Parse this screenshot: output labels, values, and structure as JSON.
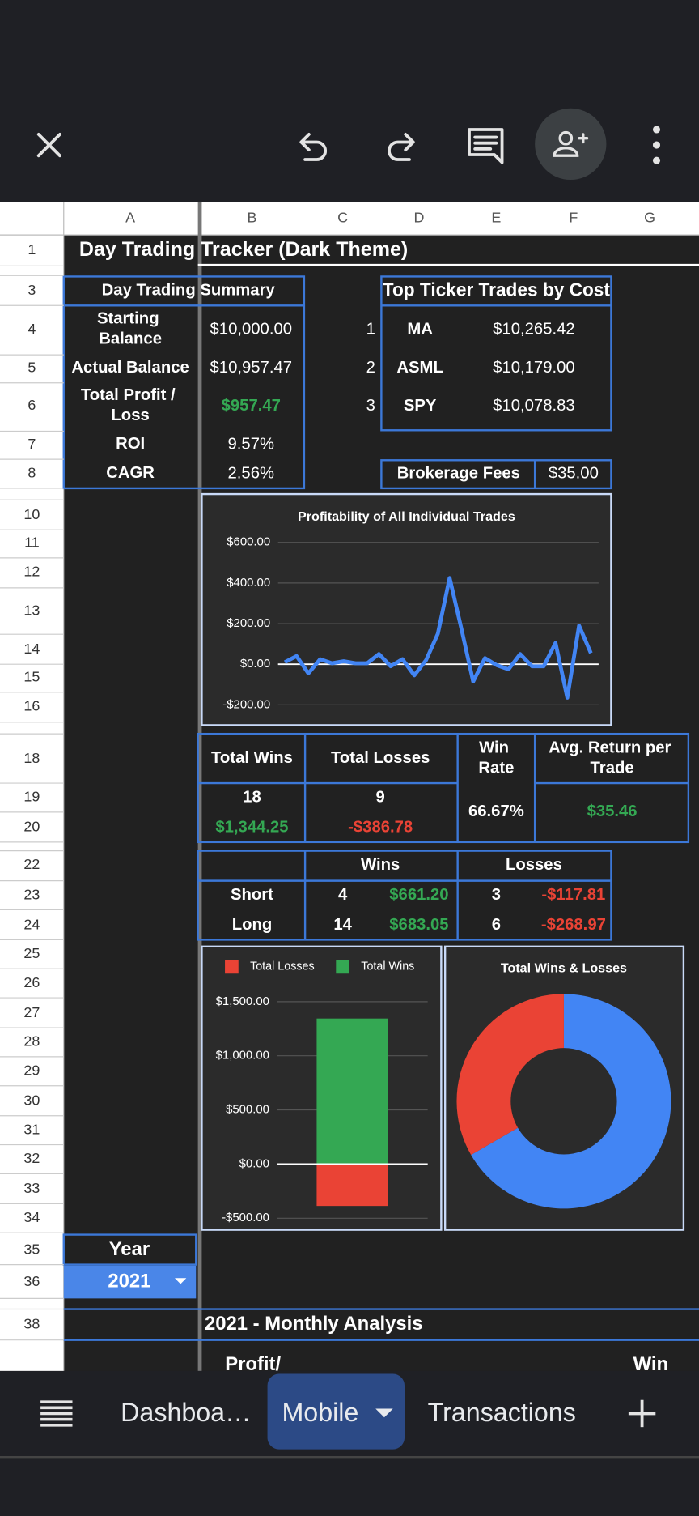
{
  "sheet": {
    "columns": [
      "A",
      "B",
      "C",
      "D",
      "E",
      "F",
      "G"
    ],
    "rows": [
      1,
      3,
      4,
      5,
      6,
      7,
      8,
      10,
      11,
      12,
      13,
      14,
      15,
      16,
      18,
      19,
      20,
      22,
      23,
      24,
      25,
      26,
      27,
      28,
      29,
      30,
      31,
      32,
      33,
      34,
      35,
      36,
      38
    ],
    "title": "Day Trading Tracker (Dark Theme)",
    "summary": {
      "title": "Day Trading Summary",
      "rows": [
        [
          "Starting Balance",
          "$10,000.00"
        ],
        [
          "Actual Balance",
          "$10,957.47"
        ],
        [
          "Total Profit / Loss",
          "$957.47"
        ],
        [
          "ROI",
          "9.57%"
        ],
        [
          "CAGR",
          "2.56%"
        ]
      ]
    },
    "top_tickers": {
      "title": "Top Ticker Trades by Cost",
      "rows": [
        [
          1,
          "MA",
          "$10,265.42"
        ],
        [
          2,
          "ASML",
          "$10,179.00"
        ],
        [
          3,
          "SPY",
          "$10,078.83"
        ]
      ]
    },
    "brokerage_fees": {
      "label": "Brokerage Fees",
      "value": "$35.00"
    },
    "stats": {
      "headers": [
        "Total Wins",
        "Total Losses",
        "Win Rate",
        "Avg. Return per Trade"
      ],
      "total_wins": 18,
      "total_losses": 9,
      "wins_amount": "$1,344.25",
      "losses_amount": "-$386.78",
      "win_rate": "66.67%",
      "avg_return": "$35.46"
    },
    "breakdown": {
      "headers": [
        "Wins",
        "Losses"
      ],
      "rows": [
        [
          "Short",
          4,
          "$661.20",
          3,
          "-$117.81"
        ],
        [
          "Long",
          14,
          "$683.05",
          6,
          "-$268.97"
        ]
      ]
    },
    "year": {
      "label": "Year",
      "value": 2021
    },
    "monthly": {
      "title": "2021 - Monthly Analysis",
      "headers": [
        "Profit/",
        "Win"
      ]
    }
  },
  "tabs": [
    "Dashboa…",
    "Mobile",
    "Transactions"
  ],
  "chart_data": [
    {
      "type": "line",
      "title": "Profitability of All Individual Trades",
      "color": "#4285f4",
      "values": [
        10,
        40,
        -45,
        25,
        5,
        15,
        5,
        5,
        50,
        -10,
        25,
        -55,
        20,
        150,
        425,
        175,
        -85,
        30,
        -5,
        -25,
        50,
        -10,
        -10,
        105,
        -165,
        190,
        55
      ],
      "ylim": [
        -200,
        600
      ],
      "yticks": [
        {
          "value": -200,
          "label": "-$200.00"
        },
        {
          "value": 0,
          "label": "$0.00"
        },
        {
          "value": 200,
          "label": "$200.00"
        },
        {
          "value": 400,
          "label": "$400.00"
        },
        {
          "value": 600,
          "label": "$600.00"
        }
      ],
      "grid": true
    },
    {
      "type": "bar",
      "categories": [
        null
      ],
      "series": [
        {
          "name": "Total Losses",
          "color": "#ea4335",
          "values": [
            -386.78
          ]
        },
        {
          "name": "Total Wins",
          "color": "#34a853",
          "values": [
            1344.25
          ]
        }
      ],
      "ylim": [
        -500,
        1500
      ],
      "yticks": [
        {
          "value": -500,
          "label": "-$500.00"
        },
        {
          "value": 0,
          "label": "$0.00"
        },
        {
          "value": 500,
          "label": "$500.00"
        },
        {
          "value": 1000,
          "label": "$1,000.00"
        },
        {
          "value": 1500,
          "label": "$1,500.00"
        }
      ],
      "grid": true,
      "legend": "top"
    },
    {
      "type": "donut",
      "title": "Total Wins & Losses",
      "values": [
        18,
        9
      ],
      "colors": [
        "#4285f4",
        "#ea4335"
      ]
    }
  ]
}
